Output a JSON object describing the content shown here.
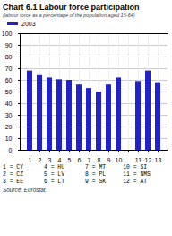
{
  "chart_data": {
    "type": "bar",
    "title": "Chart 6.1 Labour force participation",
    "subtitle": "(labour force as a percentage of the population aged 15-64)",
    "categories": [
      "1",
      "2",
      "3",
      "4",
      "5",
      "6",
      "7",
      "8",
      "9",
      "10",
      null,
      "11",
      "12",
      "13"
    ],
    "series": [
      {
        "name": "2003",
        "color": "#2222cc",
        "values": [
          68,
          64,
          62,
          60.5,
          60,
          56,
          53,
          50,
          56,
          62,
          null,
          59,
          68,
          58
        ]
      }
    ],
    "ylim": [
      0,
      100
    ],
    "yticks": [
      0,
      10,
      20,
      30,
      40,
      50,
      60,
      70,
      80,
      90,
      100
    ],
    "grid": true,
    "legend": "top",
    "annotations": [
      "1 = CY      4 = HU      7 = MT     10 = SI",
      "2 = CZ      5 = LV      8 = PL     11 = NMS",
      "3 = EE      6 = LT      9 = SK     12 = AT",
      "Source: Eurostat."
    ]
  }
}
